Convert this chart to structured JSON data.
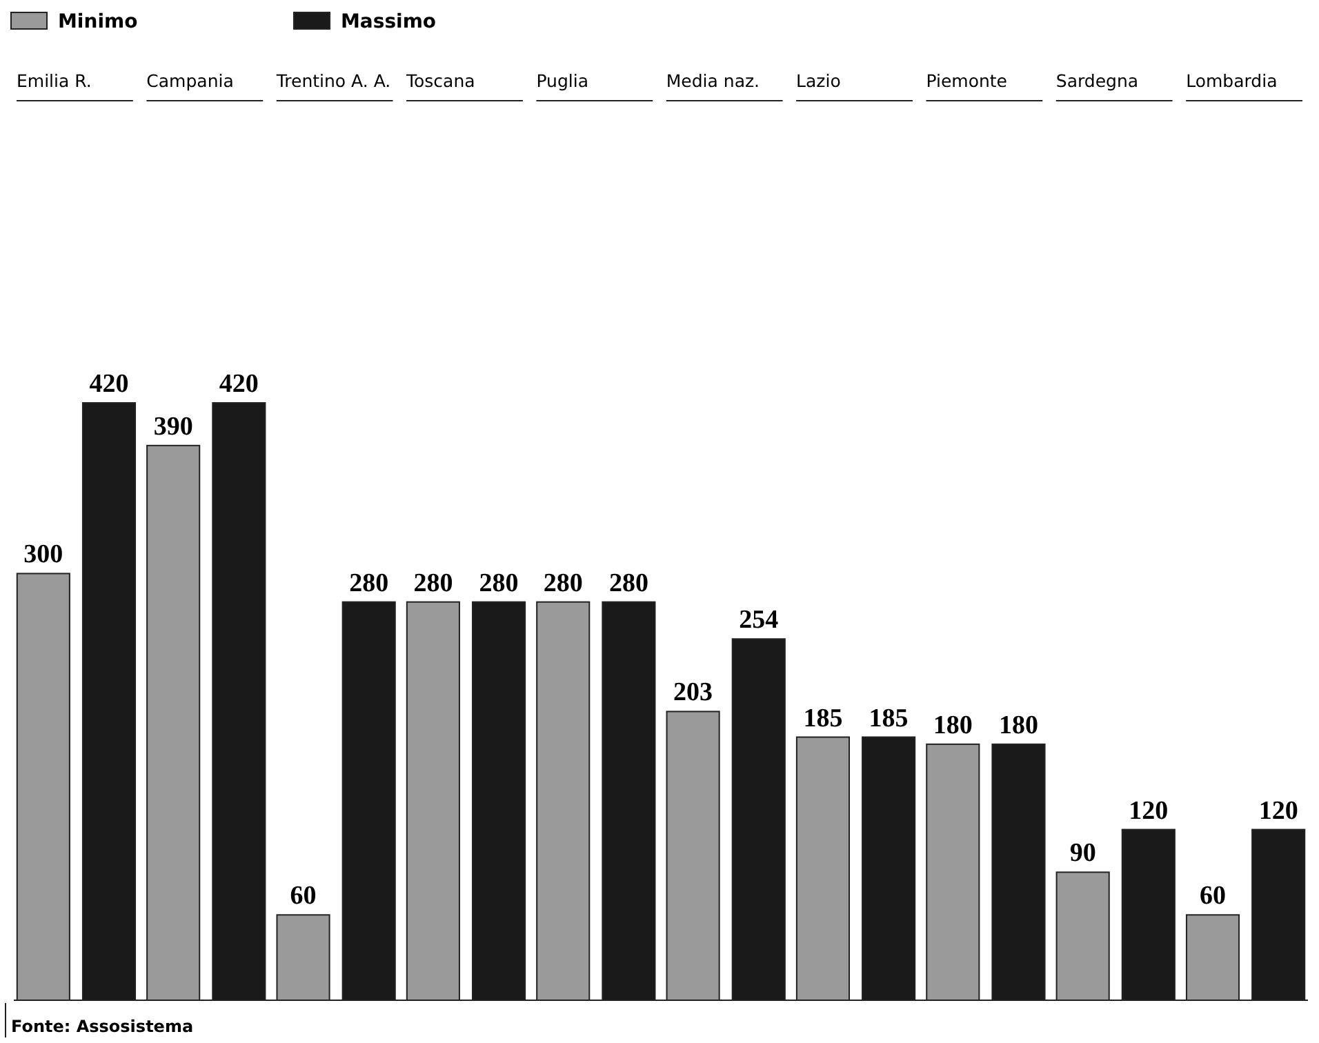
{
  "chart_data": {
    "type": "bar",
    "categories": [
      "Emilia R.",
      "Campania",
      "Trentino A. A.",
      "Toscana",
      "Puglia",
      "Media naz.",
      "Lazio",
      "Piemonte",
      "Sardegna",
      "Lombardia"
    ],
    "series": [
      {
        "name": "Minimo",
        "color": "#9a9a9a",
        "values": [
          300,
          390,
          60,
          280,
          280,
          203,
          185,
          180,
          90,
          60
        ]
      },
      {
        "name": "Massimo",
        "color": "#1a1a1a",
        "values": [
          420,
          420,
          280,
          280,
          280,
          254,
          185,
          180,
          120,
          120
        ]
      }
    ],
    "data_labels": true,
    "legend": "top left",
    "annotations": [
      "Fonte: Assosistema"
    ]
  }
}
